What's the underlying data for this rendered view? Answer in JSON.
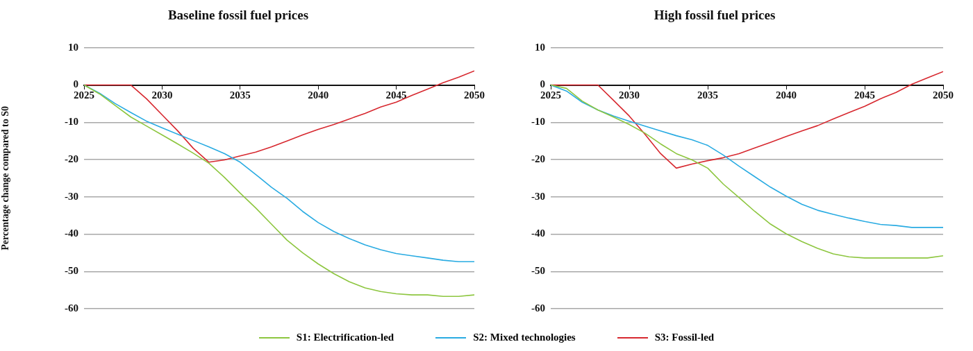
{
  "chart_data": [
    {
      "type": "line",
      "title": "Baseline fossil fuel prices",
      "ylabel": "Percentage change compared to S0",
      "legend": "bottom",
      "grid": "y",
      "xlim": [
        2025,
        2050
      ],
      "xticks": [
        2025,
        2030,
        2035,
        2040,
        2045,
        2050
      ],
      "ylim": [
        -60,
        10
      ],
      "yticks": [
        -60,
        -50,
        -40,
        -30,
        -20,
        -10,
        0,
        10
      ],
      "x": [
        2025,
        2026,
        2027,
        2028,
        2029,
        2030,
        2031,
        2032,
        2033,
        2034,
        2035,
        2036,
        2037,
        2038,
        2039,
        2040,
        2041,
        2042,
        2043,
        2044,
        2045,
        2046,
        2047,
        2048,
        2049,
        2050
      ],
      "series": [
        {
          "name": "S1: Electrification-led",
          "color": "#8dc63f",
          "values": [
            0,
            -2.4,
            -5.5,
            -8.6,
            -11,
            -13.4,
            -15.8,
            -18.3,
            -21,
            -24.8,
            -29,
            -33,
            -37.3,
            -41.6,
            -45,
            -48,
            -50.6,
            -52.8,
            -54.4,
            -55.4,
            -56,
            -56.3,
            -56.3,
            -56.7,
            -56.7,
            -56.3
          ]
        },
        {
          "name": "S2: Mixed technologies",
          "color": "#29abe2",
          "values": [
            0,
            -2.2,
            -5,
            -7.4,
            -9.7,
            -11.5,
            -13.2,
            -14.9,
            -16.6,
            -18.4,
            -20.7,
            -24,
            -27.4,
            -30.4,
            -33.9,
            -36.9,
            -39.3,
            -41.2,
            -42.9,
            -44.2,
            -45.2,
            -45.8,
            -46.4,
            -47,
            -47.4,
            -47.4
          ]
        },
        {
          "name": "S3: Fossil-led",
          "color": "#d7282f",
          "values": [
            0,
            0,
            0,
            0,
            -3.7,
            -8,
            -12.3,
            -17,
            -20.7,
            -20.1,
            -19,
            -18,
            -16.6,
            -15,
            -13.4,
            -11.9,
            -10.6,
            -9.1,
            -7.6,
            -5.9,
            -4.6,
            -2.8,
            -1.1,
            0.6,
            2.1,
            3.8
          ]
        }
      ]
    },
    {
      "type": "line",
      "title": "High fossil fuel prices",
      "grid": "y",
      "xlim": [
        2025,
        2050
      ],
      "xticks": [
        2025,
        2030,
        2035,
        2040,
        2045,
        2050
      ],
      "ylim": [
        -60,
        10
      ],
      "yticks": [
        -60,
        -50,
        -40,
        -30,
        -20,
        -10,
        0,
        10
      ],
      "x": [
        2025,
        2026,
        2027,
        2028,
        2029,
        2030,
        2031,
        2032,
        2033,
        2034,
        2035,
        2036,
        2037,
        2038,
        2039,
        2040,
        2041,
        2042,
        2043,
        2044,
        2045,
        2046,
        2047,
        2048,
        2049,
        2050
      ],
      "series": [
        {
          "color": "#8dc63f",
          "values": [
            0,
            -0.9,
            -4.3,
            -6.7,
            -8.6,
            -10.6,
            -12.9,
            -15.8,
            -18.4,
            -20.1,
            -22.3,
            -26.6,
            -30.2,
            -33.9,
            -37.3,
            -39.9,
            -42,
            -43.8,
            -45.3,
            -46.1,
            -46.4,
            -46.4,
            -46.4,
            -46.4,
            -46.4,
            -45.8
          ]
        },
        {
          "color": "#29abe2",
          "values": [
            0,
            -1.6,
            -4.6,
            -6.7,
            -8.3,
            -9.7,
            -11,
            -12.3,
            -13.6,
            -14.7,
            -16.2,
            -18.8,
            -21.8,
            -24.6,
            -27.4,
            -29.8,
            -32,
            -33.6,
            -34.7,
            -35.7,
            -36.6,
            -37.4,
            -37.7,
            -38.2,
            -38.2,
            -38.2
          ]
        },
        {
          "color": "#d7282f",
          "values": [
            0,
            0,
            0,
            0,
            -4.1,
            -8.3,
            -13.2,
            -18.4,
            -22.3,
            -21.2,
            -20.3,
            -19.5,
            -18.4,
            -16.9,
            -15.4,
            -13.8,
            -12.3,
            -10.9,
            -9.1,
            -7.4,
            -5.7,
            -3.7,
            -2,
            0.2,
            1.9,
            3.6
          ]
        }
      ]
    }
  ]
}
